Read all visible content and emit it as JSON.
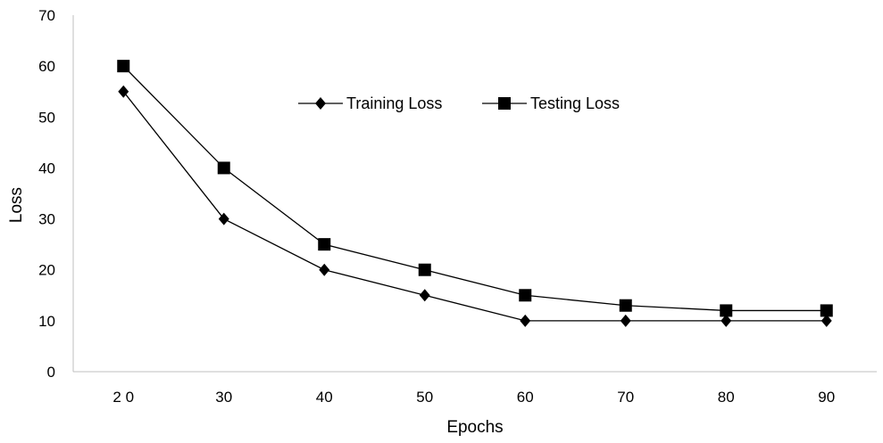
{
  "chart_data": {
    "type": "line",
    "categories": [
      "2 0",
      "30",
      "40",
      "50",
      "60",
      "70",
      "80",
      "90"
    ],
    "x": [
      20,
      30,
      40,
      50,
      60,
      70,
      80,
      90
    ],
    "series": [
      {
        "name": "Training Loss",
        "marker": "diamond",
        "values": [
          55,
          30,
          20,
          15,
          10,
          10,
          10,
          10
        ]
      },
      {
        "name": "Testing Loss",
        "marker": "square",
        "values": [
          60,
          40,
          25,
          20,
          15,
          13,
          12,
          12
        ]
      }
    ],
    "xlabel": "Epochs",
    "ylabel": "Loss",
    "ylim": [
      0,
      70
    ],
    "yticks": [
      "0",
      "10",
      "20",
      "30",
      "40",
      "50",
      "60",
      "70"
    ],
    "grid": false,
    "legend": "top-center",
    "colors": {
      "line": "#000000",
      "axis": "#bfbfbf"
    }
  }
}
